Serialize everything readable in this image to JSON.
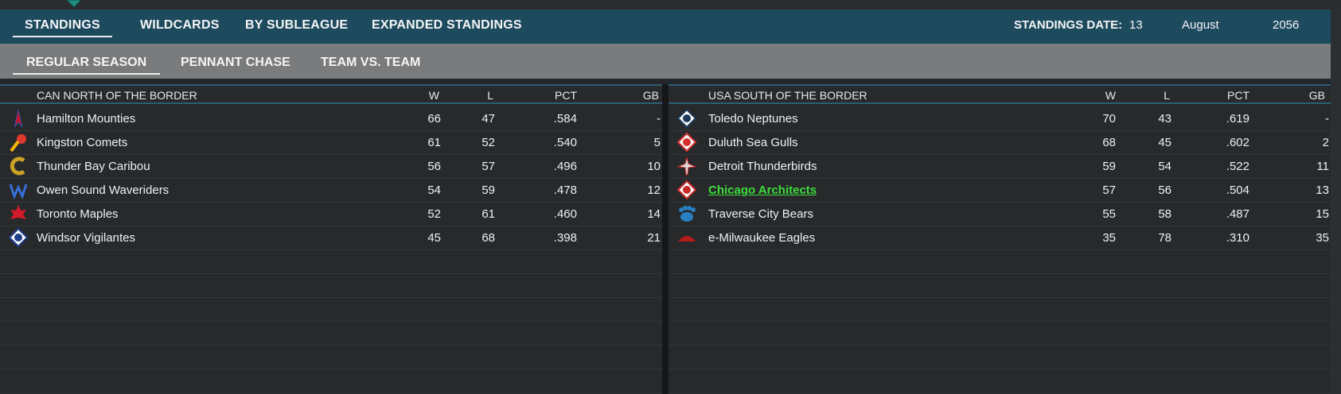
{
  "tabs": [
    "STANDINGS",
    "WILDCARDS",
    "BY SUBLEAGUE",
    "EXPANDED STANDINGS"
  ],
  "standings_date": {
    "label": "STANDINGS DATE:",
    "day": "13",
    "month": "August",
    "year": "2056"
  },
  "subtabs": [
    "REGULAR SEASON",
    "PENNANT CHASE",
    "TEAM VS. TEAM"
  ],
  "left_division": {
    "name": "CAN NORTH OF THE BORDER",
    "columns": {
      "w": "W",
      "l": "L",
      "pct": "PCT",
      "gb": "GB"
    },
    "teams": [
      {
        "name": "Hamilton Mounties",
        "w": "66",
        "l": "47",
        "pct": ".584",
        "gb": "-",
        "logo": "mounties-logo",
        "color": "#c8102e"
      },
      {
        "name": "Kingston Comets",
        "w": "61",
        "l": "52",
        "pct": ".540",
        "gb": "5",
        "logo": "comets-logo",
        "color": "#e03a2e"
      },
      {
        "name": "Thunder Bay Caribou",
        "w": "56",
        "l": "57",
        "pct": ".496",
        "gb": "10",
        "logo": "caribou-logo",
        "color": "#c9a227"
      },
      {
        "name": "Owen Sound Waveriders",
        "w": "54",
        "l": "59",
        "pct": ".478",
        "gb": "12",
        "logo": "waveriders-logo",
        "color": "#3a6fd8"
      },
      {
        "name": "Toronto Maples",
        "w": "52",
        "l": "61",
        "pct": ".460",
        "gb": "14",
        "logo": "maples-logo",
        "color": "#d11a2a"
      },
      {
        "name": "Windsor Vigilantes",
        "w": "45",
        "l": "68",
        "pct": ".398",
        "gb": "21",
        "logo": "vigilantes-logo",
        "color": "#1f3f8a"
      }
    ]
  },
  "right_division": {
    "name": "USA SOUTH OF THE BORDER",
    "columns": {
      "w": "W",
      "l": "L",
      "pct": "PCT",
      "gb": "GB"
    },
    "teams": [
      {
        "name": "Toledo Neptunes",
        "w": "70",
        "l": "43",
        "pct": ".619",
        "gb": "-",
        "logo": "neptunes-logo",
        "color": "#1b3a5c"
      },
      {
        "name": "Duluth Sea Gulls",
        "w": "68",
        "l": "45",
        "pct": ".602",
        "gb": "2",
        "logo": "seagulls-logo",
        "color": "#d32f2f"
      },
      {
        "name": "Detroit Thunderbirds",
        "w": "59",
        "l": "54",
        "pct": ".522",
        "gb": "11",
        "logo": "thunderbirds-logo",
        "color": "#d9d9d9"
      },
      {
        "name": "Chicago Architects",
        "w": "57",
        "l": "56",
        "pct": ".504",
        "gb": "13",
        "logo": "architects-logo",
        "color": "#c62828",
        "highlight": true
      },
      {
        "name": "Traverse City Bears",
        "w": "55",
        "l": "58",
        "pct": ".487",
        "gb": "15",
        "logo": "bears-logo",
        "color": "#2a7fc0"
      },
      {
        "name": "e-Milwaukee Eagles",
        "w": "35",
        "l": "78",
        "pct": ".310",
        "gb": "35",
        "logo": "eagles-logo",
        "color": "#b71c1c"
      }
    ]
  },
  "colors": {
    "tab_bar": "#1e4a5e",
    "subtab_bar": "#7a7b7d",
    "highlight_team": "#3ddc3a",
    "accent_marker": "#1f8f80"
  }
}
